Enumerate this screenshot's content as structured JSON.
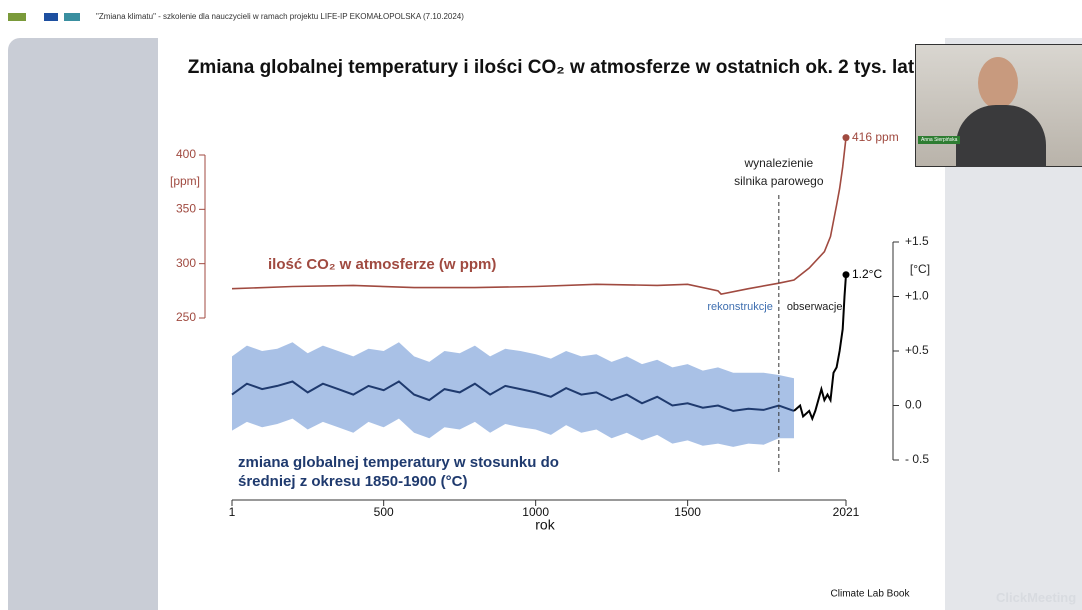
{
  "header": {
    "text": "\"Zmiana klimatu\" - szkolenie dla nauczycieli w ramach projektu LIFE-IP EKOMAŁOPOLSKA (7.10.2024)"
  },
  "webcam": {
    "name": "Anna Sierpińska"
  },
  "watermark": "ClickMeeting",
  "chart_data": {
    "type": "line",
    "title": "Zmiana globalnej temperatury i ilości CO₂ w atmosferze w ostatnich ok. 2 tys. lat",
    "xlabel": "rok",
    "ylabel": "[ppm]",
    "y2label": "[°C]",
    "xlim": [
      1,
      2021
    ],
    "xticks": [
      1,
      500,
      1000,
      1500,
      2021
    ],
    "ylim": [
      250,
      400
    ],
    "yticks": [
      250,
      300,
      350,
      400
    ],
    "y2lim": [
      -0.5,
      1.5
    ],
    "y2ticks": [
      {
        "value": -0.5,
        "label": "- 0.5"
      },
      {
        "value": 0,
        "label": "0.0"
      },
      {
        "value": 0.5,
        "label": "+0.5"
      },
      {
        "value": 1,
        "label": "+1.0"
      },
      {
        "value": 1.5,
        "label": "+1.5"
      }
    ],
    "series": [
      {
        "name": "ilość CO₂ w atmosferze (w ppm)",
        "color": "#a04a40",
        "x": [
          1,
          200,
          400,
          600,
          800,
          1000,
          1200,
          1400,
          1500,
          1600,
          1610,
          1700,
          1800,
          1850,
          1900,
          1950,
          1970,
          1990,
          2000,
          2010,
          2021
        ],
        "values": [
          277,
          279,
          280,
          278,
          278,
          279,
          281,
          280,
          281,
          275,
          272,
          277,
          282,
          285,
          296,
          311,
          325,
          354,
          369,
          389,
          416
        ],
        "end_label": "416 ppm"
      },
      {
        "name": "rekonstrukcje",
        "color": "#1f3a6e",
        "band_color": "#a9c1e6",
        "axis": "y2",
        "label": "zmiana globalnej temperatury w stosunku do średniej z okresu 1850-1900 (°C)",
        "x": [
          1,
          50,
          100,
          150,
          200,
          250,
          300,
          350,
          400,
          450,
          500,
          550,
          600,
          650,
          700,
          750,
          800,
          850,
          900,
          950,
          1000,
          1050,
          1100,
          1150,
          1200,
          1250,
          1300,
          1350,
          1400,
          1450,
          1500,
          1550,
          1600,
          1650,
          1700,
          1750,
          1800,
          1850
        ],
        "values": [
          0.1,
          0.2,
          0.15,
          0.18,
          0.22,
          0.12,
          0.2,
          0.15,
          0.1,
          0.18,
          0.14,
          0.22,
          0.1,
          0.05,
          0.15,
          0.12,
          0.2,
          0.1,
          0.18,
          0.15,
          0.12,
          0.08,
          0.16,
          0.1,
          0.12,
          0.05,
          0.1,
          0.02,
          0.08,
          0,
          0.02,
          -0.02,
          0,
          -0.05,
          -0.03,
          -0.04,
          0,
          -0.05
        ],
        "lower": [
          -0.23,
          -0.15,
          -0.2,
          -0.17,
          -0.12,
          -0.22,
          -0.15,
          -0.2,
          -0.25,
          -0.15,
          -0.2,
          -0.12,
          -0.25,
          -0.3,
          -0.2,
          -0.22,
          -0.15,
          -0.25,
          -0.17,
          -0.2,
          -0.22,
          -0.27,
          -0.18,
          -0.25,
          -0.22,
          -0.3,
          -0.25,
          -0.32,
          -0.27,
          -0.35,
          -0.32,
          -0.37,
          -0.35,
          -0.38,
          -0.35,
          -0.36,
          -0.3,
          -0.3
        ],
        "upper": [
          0.45,
          0.55,
          0.5,
          0.52,
          0.58,
          0.48,
          0.55,
          0.5,
          0.45,
          0.52,
          0.5,
          0.58,
          0.45,
          0.4,
          0.5,
          0.48,
          0.55,
          0.45,
          0.52,
          0.5,
          0.47,
          0.43,
          0.5,
          0.45,
          0.47,
          0.4,
          0.45,
          0.38,
          0.42,
          0.35,
          0.38,
          0.32,
          0.35,
          0.3,
          0.3,
          0.3,
          0.28,
          0.25
        ]
      },
      {
        "name": "obserwacje",
        "color": "#000000",
        "axis": "y2",
        "x": [
          1850,
          1870,
          1880,
          1900,
          1910,
          1920,
          1940,
          1950,
          1960,
          1970,
          1980,
          1990,
          2000,
          2010,
          2016,
          2021
        ],
        "values": [
          -0.05,
          0,
          -0.1,
          -0.05,
          -0.12,
          -0.05,
          0.15,
          0.05,
          0.1,
          0.05,
          0.3,
          0.35,
          0.5,
          0.7,
          1.0,
          1.2
        ],
        "end_label": "1.2°C"
      }
    ],
    "annotation": {
      "x": 1800,
      "lines": [
        "wynalezienie",
        "silnika parowego"
      ]
    },
    "source": "Climate Lab Book"
  }
}
